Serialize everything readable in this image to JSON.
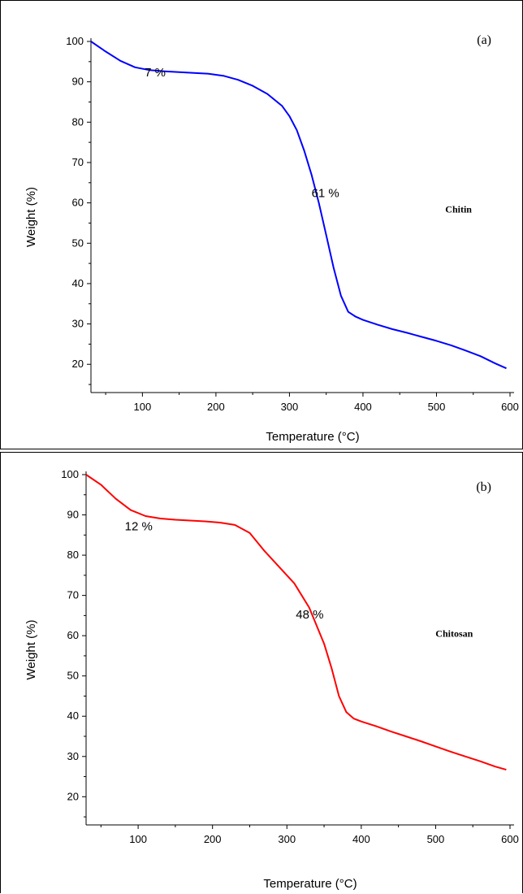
{
  "chart_data": [
    {
      "type": "line",
      "panel_label": "(a)",
      "xlabel": "Temperature (°C)",
      "ylabel": "Weight (%)",
      "xlim": [
        30,
        600
      ],
      "ylim": [
        13,
        100
      ],
      "xticks": [
        100,
        200,
        300,
        400,
        500,
        600
      ],
      "yticks": [
        20,
        30,
        40,
        50,
        60,
        70,
        80,
        90,
        100
      ],
      "grid": false,
      "series": [
        {
          "name": "Chitin",
          "color": "#0000ff",
          "x": [
            30,
            50,
            70,
            90,
            110,
            130,
            150,
            170,
            190,
            210,
            230,
            250,
            270,
            290,
            300,
            310,
            320,
            330,
            340,
            350,
            360,
            370,
            380,
            390,
            400,
            420,
            440,
            460,
            480,
            500,
            520,
            540,
            560,
            580,
            595
          ],
          "y": [
            100,
            97.5,
            95.2,
            93.6,
            92.9,
            92.6,
            92.4,
            92.2,
            92,
            91.5,
            90.5,
            89,
            87,
            84,
            81.5,
            78,
            73,
            67,
            60,
            52,
            44,
            37,
            33,
            31.8,
            31,
            29.8,
            28.7,
            27.8,
            26.8,
            25.8,
            24.7,
            23.4,
            22,
            20.2,
            19
          ]
        }
      ],
      "annotations": [
        {
          "text": "7 %",
          "x": 103,
          "y": 91.3
        },
        {
          "text": "61 %",
          "x": 330,
          "y": 61.4
        }
      ],
      "series_label": {
        "text": "Chitin",
        "x": 530,
        "y": 57.6
      }
    },
    {
      "type": "line",
      "panel_label": "(b)",
      "xlabel": "Temperature (°C)",
      "ylabel": "Weight (%)",
      "xlim": [
        30,
        600
      ],
      "ylim": [
        13,
        100
      ],
      "xticks": [
        100,
        200,
        300,
        400,
        500,
        600
      ],
      "yticks": [
        20,
        30,
        40,
        50,
        60,
        70,
        80,
        90,
        100
      ],
      "grid": false,
      "series": [
        {
          "name": "Chitosan",
          "color": "#ff0000",
          "x": [
            30,
            50,
            70,
            90,
            110,
            130,
            150,
            170,
            190,
            210,
            230,
            250,
            270,
            290,
            310,
            330,
            350,
            360,
            370,
            380,
            390,
            400,
            420,
            440,
            460,
            480,
            500,
            520,
            540,
            560,
            580,
            595
          ],
          "y": [
            100,
            97.5,
            94,
            91.2,
            89.7,
            89.1,
            88.8,
            88.6,
            88.4,
            88.1,
            87.5,
            85.5,
            81,
            77,
            73,
            67,
            58,
            52,
            45,
            41,
            39.4,
            38.7,
            37.5,
            36.2,
            35,
            33.8,
            32.5,
            31.2,
            30,
            28.8,
            27.5,
            26.7
          ]
        }
      ],
      "annotations": [
        {
          "text": "12 %",
          "x": 82,
          "y": 86.2
        },
        {
          "text": "48 %",
          "x": 312,
          "y": 64.3
        }
      ],
      "series_label": {
        "text": "Chitosan",
        "x": 525,
        "y": 59.7
      }
    }
  ]
}
